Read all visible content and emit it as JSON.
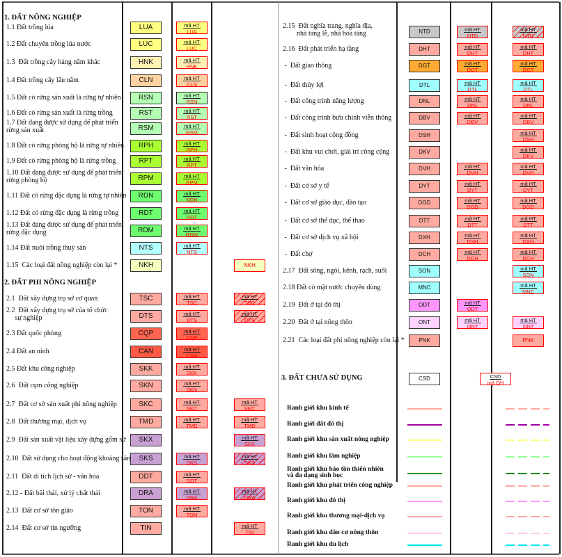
{
  "ht_label": "mã HT",
  "sections": {
    "agri": {
      "title": "1.  ĐẤT NÔNG NGHIỆP"
    },
    "nonagri": {
      "title": "2. ĐẤT PHI NÔNG NGHIỆP"
    },
    "unused": {
      "title": "3. ĐẤT CHƯA SỬ DỤNG",
      "code": "CSD",
      "qh_label": "mã QH"
    }
  },
  "left_items": [
    {
      "label": "1.1 Đất trồng lúa",
      "code": "LUA",
      "color": "#ffff80",
      "c2": "ht",
      "c3": null
    },
    {
      "label": "1.2 Đất chuyên trồng lúa nước",
      "code": "LUC",
      "color": "#ffff80",
      "c2": "ht",
      "c3": null
    },
    {
      "label": "1.3  Đất trồng cây hàng năm khác",
      "code": "HNK",
      "color": "#fff0b4",
      "c2": "ht",
      "c3": null
    },
    {
      "label": "1.4 Đất trồng cây lâu năm",
      "code": "CLN",
      "color": "#ffd2a0",
      "c2": "ht",
      "c3": null
    },
    {
      "label": "1.5 Đất có rừng sản xuất là rừng tự nhiên",
      "code": "RSN",
      "color": "#b4ffb4",
      "c2": "dark",
      "c3": null
    },
    {
      "label": "1.6 Đất có rừng sản xuất là rừng trồng",
      "code": "RST",
      "color": "#b4ffb4",
      "c2": "ht",
      "c3": null
    },
    {
      "label": "1.7 Đất đang được sử dụng để phát triển\nrừng sản xuất",
      "code": "RSM",
      "color": "#b4ffb4",
      "c2": "ht",
      "c3": null
    },
    {
      "label": "1.8 Đất có rừng phòng hộ là rừng tự nhiên",
      "code": "RPH",
      "color": "#aaff32",
      "c2": "ht",
      "c3": null
    },
    {
      "label": "1.9 Đất có rừng phòng hộ là rừng trồng",
      "code": "RPT",
      "color": "#aaff32",
      "c2": "ht",
      "c3": null
    },
    {
      "label": "1.10 Đất đang được sử dụng để phát triển\nrừng phòng hộ",
      "code": "RPM",
      "color": "#aaff32",
      "c2": "ht",
      "c3": null
    },
    {
      "label": "1.11 Đất có rừng đặc dụng là rừng tự nhiên",
      "code": "RDN",
      "color": "#6eff6e",
      "c2": "ht",
      "c3": null
    },
    {
      "label": "1.12 Đất có rừng đặc dụng là rừng trồng",
      "code": "RDT",
      "color": "#6eff6e",
      "c2": "ht",
      "c3": null
    },
    {
      "label": "1.13 Đất đang được sử dụng để phát triển\nrừng đặc dụng",
      "code": "RDM",
      "color": "#6eff6e",
      "c2": "ht",
      "c3": null
    },
    {
      "label": "1.14 Đất nuôi trồng thuỷ sản",
      "code": "NTS",
      "color": "#b4ffff",
      "c2": "ht",
      "c3": null
    },
    {
      "label": "1.15  Các loại đất nông nghiệp còn lại *",
      "code": "NKH",
      "color": "#f5ffbe",
      "c2": null,
      "c3": "plain"
    },
    {
      "label": "2.1  Đất xây dựng trụ sở cơ quan",
      "code": "TSC",
      "color": "#ffaaa0",
      "c2": "ht",
      "c3": "hatch"
    },
    {
      "label": "2.2  Đất xây dựng trụ sở của tổ chức\n     sự nghiệp",
      "code": "DTS",
      "color": "#ffaaa0",
      "c2": "ht",
      "c3": "hatch"
    },
    {
      "label": "2.3 Đất quốc phòng",
      "code": "CQP",
      "color": "#ff6450",
      "c2": "ht",
      "c3": null
    },
    {
      "label": "2.4 Đất an ninh",
      "code": "CAN",
      "color": "#ff5a46",
      "c2": "ht",
      "c3": null
    },
    {
      "label": "2.5 Đất khu công nghiệp",
      "code": "SKK",
      "color": "#ffaaa0",
      "c2": "ht",
      "c3": null
    },
    {
      "label": "2.6  Đất cụm công nghiệp",
      "code": "SKN",
      "color": "#ffaaa0",
      "c2": "ht",
      "c3": null
    },
    {
      "label": "2.7  Đất cơ sở sản xuất phi nông nghiệp",
      "code": "SKC",
      "color": "#ffaaa0",
      "c2": "ht",
      "c3": "ht"
    },
    {
      "label": "2.8  Đất thương mại, dịch vụ",
      "code": "TMD",
      "color": "#ffaaa0",
      "c2": "ht",
      "c3": "ht"
    },
    {
      "label": "2.9  Đất sản xuất vật liệu xây dựng gốm sứ",
      "code": "SKX",
      "color": "#c8a0d2",
      "c2": null,
      "c3": "ht"
    },
    {
      "label": "2.10  Đất sử dụng cho hoạt động khoáng sản",
      "code": "SKS",
      "color": "#c8a0d2",
      "c2": "ht",
      "c3": "hatch"
    },
    {
      "label": "2.11  Đất di tích lịch sử - văn hóa",
      "code": "DDT",
      "color": "#ffaaa0",
      "c2": "ht",
      "c3": null
    },
    {
      "label": "2.12 - Đất bãi thải, xử lý chất thải",
      "code": "DRA",
      "color": "#c8a0d2",
      "c2": "ht",
      "c3": "hatch"
    },
    {
      "label": "2.13  Đất cơ sở tôn giáo",
      "code": "TON",
      "color": "#ffaaa0",
      "c2": "ht",
      "c3": null
    },
    {
      "label": "2.14  Đất cơ sở tín ngưỡng",
      "code": "TIN",
      "color": "#ffaaa0",
      "c2": null,
      "c3": "ht"
    }
  ],
  "right_items": [
    {
      "label": "2.15  Đất nghĩa trang, nghĩa địa,\n        nhà tang lễ, nhà hỏa táng",
      "code": "NTD",
      "color": "#c8c8c8",
      "c2": "ht",
      "c3": "hatch"
    },
    {
      "label": "2.16  Đất phát triển hạ tầng",
      "code": "DHT",
      "color": "#ffaaa0",
      "c2": "ht",
      "c3": "ht"
    },
    {
      "label": " -  Đất giao thông",
      "code": "DGT",
      "color": "#ffaa32",
      "c2": "ht",
      "c3": "ht"
    },
    {
      "label": " -  Đất thủy lợi",
      "code": "DTL",
      "color": "#a0ffff",
      "c2": "ht",
      "c3": "ht"
    },
    {
      "label": " -  Đất công trình năng lượng",
      "code": "DNL",
      "color": "#ffaaa0",
      "c2": "ht",
      "c3": "ht"
    },
    {
      "label": " -  Đất công trình bưu chính viễn thông",
      "code": "DBV",
      "color": "#ffaaa0",
      "c2": "ht",
      "c3": "ht"
    },
    {
      "label": " -  Đất sinh hoạt cộng đồng",
      "code": "DSH",
      "color": "#ffaaa0",
      "c2": null,
      "c3": "ht"
    },
    {
      "label": " -  Đất khu vui chơi, giải trí công cộng",
      "code": "DKV",
      "color": "#ffaaa0",
      "c2": null,
      "c3": "ht"
    },
    {
      "label": " -  Đất văn hóa",
      "code": "DVH",
      "color": "#ffaaa0",
      "c2": "ht",
      "c3": "ht"
    },
    {
      "label": " -  Đất cơ sở y tế",
      "code": "DYT",
      "color": "#ffaaa0",
      "c2": "ht",
      "c3": "ht"
    },
    {
      "label": " -  Đất cơ sở giáo dục, đào tạo",
      "code": "DGD",
      "color": "#ffaaa0",
      "c2": "ht",
      "c3": "ht"
    },
    {
      "label": " -  Đất cơ sở thể dục, thể thao",
      "code": "DTT",
      "color": "#ffaaa0",
      "c2": "ht",
      "c3": "ht"
    },
    {
      "label": " -  Đất cơ sở dịch vụ xã hội",
      "code": "DXH",
      "color": "#ffaaa0",
      "c2": "ht",
      "c3": "ht"
    },
    {
      "label": " -  Đất chợ",
      "code": "DCH",
      "color": "#ffaaa0",
      "c2": "ht",
      "c3": "ht"
    },
    {
      "label": "2.17  Đất sông, ngòi, kênh, rạch, suối",
      "code": "SON",
      "color": "#a0ffff",
      "c2": null,
      "c3": "ht"
    },
    {
      "label": "2.18 Đất có mặt nước chuyên dùng",
      "code": "MNC",
      "color": "#a0ffff",
      "c2": null,
      "c3": "ht"
    },
    {
      "label": "2.19  Đất ở tại đô thị",
      "code": "ODT",
      "color": "#ff96ff",
      "c2": "ht",
      "c3": null
    },
    {
      "label": "2.20  Đất ở tại nông thôn",
      "code": "ONT",
      "color": "#ffd2ff",
      "c2": "ht",
      "c3": "ht"
    },
    {
      "label": "2.21  Các loại đất phi nông nghiệp còn lại *",
      "code": "PNK",
      "color": "#ffaaa0",
      "c2": null,
      "c3": "plain"
    }
  ],
  "boundaries": [
    {
      "label": "Ranh giới khu kinh tế",
      "color": "#ffaaa0"
    },
    {
      "label": "Ranh giới đất đô thị",
      "color": "#a000a0"
    },
    {
      "label": "Ranh giới khu sản xuất nông nghiệp",
      "color": "#ffff80"
    },
    {
      "label": "Ranh giới khu lâm nghiệp",
      "color": "#96ff96"
    },
    {
      "label": "Ranh giới khu bảo tồn thiên nhiên\nvà đa dạng sinh học",
      "color": "#008c00"
    },
    {
      "label": "Ranh giới khu phát triển công nghiệp",
      "color": "#ffaaa0"
    },
    {
      "label": "Ranh giới khu đô thị",
      "color": "#ff96ff"
    },
    {
      "label": "Ranh giới khu thương mại-dịch vụ",
      "color": "#ffaaa0"
    },
    {
      "label": "Ranh giới khu dân cư nông thôn",
      "color": "#ffc8f0"
    },
    {
      "label": "Ranh giới khu du lịch",
      "color": "#00e6f0"
    }
  ]
}
